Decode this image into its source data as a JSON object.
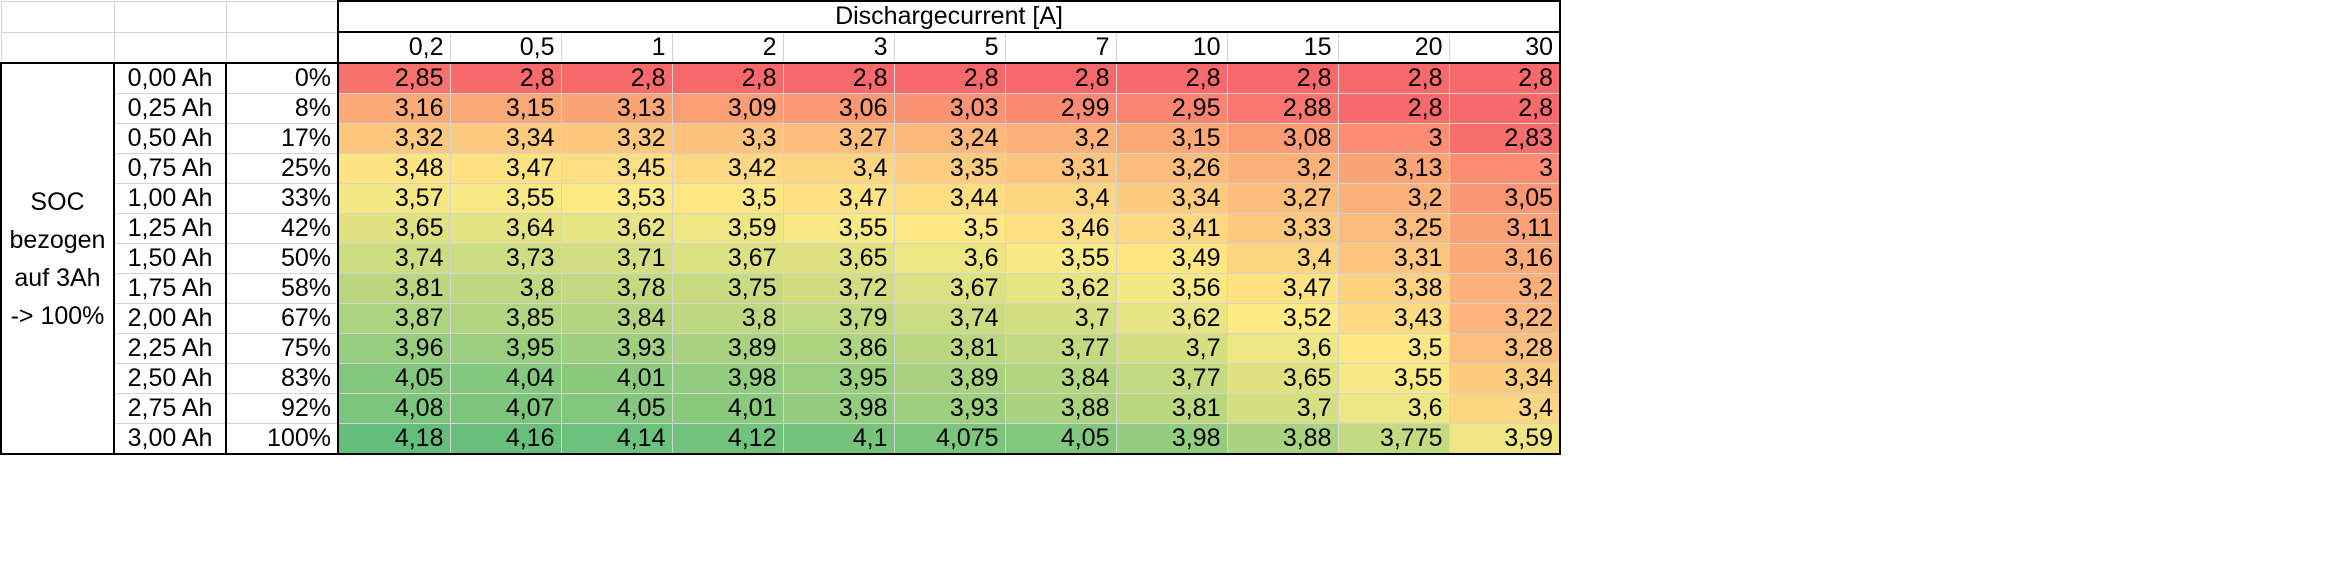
{
  "header": {
    "title": "Dischargecurrent [A]",
    "currents": [
      "0,2",
      "0,5",
      "1",
      "2",
      "3",
      "5",
      "7",
      "10",
      "15",
      "20",
      "30"
    ]
  },
  "soc_label": "SOC bezogen auf 3Ah -> 100%",
  "rows": [
    {
      "ah": "0,00 Ah",
      "pct": "0%",
      "values": [
        "2,85",
        "2,8",
        "2,8",
        "2,8",
        "2,8",
        "2,8",
        "2,8",
        "2,8",
        "2,8",
        "2,8",
        "2,8"
      ]
    },
    {
      "ah": "0,25 Ah",
      "pct": "8%",
      "values": [
        "3,16",
        "3,15",
        "3,13",
        "3,09",
        "3,06",
        "3,03",
        "2,99",
        "2,95",
        "2,88",
        "2,8",
        "2,8"
      ]
    },
    {
      "ah": "0,50 Ah",
      "pct": "17%",
      "values": [
        "3,32",
        "3,34",
        "3,32",
        "3,3",
        "3,27",
        "3,24",
        "3,2",
        "3,15",
        "3,08",
        "3",
        "2,83"
      ]
    },
    {
      "ah": "0,75 Ah",
      "pct": "25%",
      "values": [
        "3,48",
        "3,47",
        "3,45",
        "3,42",
        "3,4",
        "3,35",
        "3,31",
        "3,26",
        "3,2",
        "3,13",
        "3"
      ]
    },
    {
      "ah": "1,00 Ah",
      "pct": "33%",
      "values": [
        "3,57",
        "3,55",
        "3,53",
        "3,5",
        "3,47",
        "3,44",
        "3,4",
        "3,34",
        "3,27",
        "3,2",
        "3,05"
      ]
    },
    {
      "ah": "1,25 Ah",
      "pct": "42%",
      "values": [
        "3,65",
        "3,64",
        "3,62",
        "3,59",
        "3,55",
        "3,5",
        "3,46",
        "3,41",
        "3,33",
        "3,25",
        "3,11"
      ]
    },
    {
      "ah": "1,50 Ah",
      "pct": "50%",
      "values": [
        "3,74",
        "3,73",
        "3,71",
        "3,67",
        "3,65",
        "3,6",
        "3,55",
        "3,49",
        "3,4",
        "3,31",
        "3,16"
      ]
    },
    {
      "ah": "1,75 Ah",
      "pct": "58%",
      "values": [
        "3,81",
        "3,8",
        "3,78",
        "3,75",
        "3,72",
        "3,67",
        "3,62",
        "3,56",
        "3,47",
        "3,38",
        "3,2"
      ]
    },
    {
      "ah": "2,00 Ah",
      "pct": "67%",
      "values": [
        "3,87",
        "3,85",
        "3,84",
        "3,8",
        "3,79",
        "3,74",
        "3,7",
        "3,62",
        "3,52",
        "3,43",
        "3,22"
      ]
    },
    {
      "ah": "2,25 Ah",
      "pct": "75%",
      "values": [
        "3,96",
        "3,95",
        "3,93",
        "3,89",
        "3,86",
        "3,81",
        "3,77",
        "3,7",
        "3,6",
        "3,5",
        "3,28"
      ]
    },
    {
      "ah": "2,50 Ah",
      "pct": "83%",
      "values": [
        "4,05",
        "4,04",
        "4,01",
        "3,98",
        "3,95",
        "3,89",
        "3,84",
        "3,77",
        "3,65",
        "3,55",
        "3,34"
      ]
    },
    {
      "ah": "2,75 Ah",
      "pct": "92%",
      "values": [
        "4,08",
        "4,07",
        "4,05",
        "4,01",
        "3,98",
        "3,93",
        "3,88",
        "3,81",
        "3,7",
        "3,6",
        "3,4"
      ]
    },
    {
      "ah": "3,00 Ah",
      "pct": "100%",
      "values": [
        "4,18",
        "4,16",
        "4,14",
        "4,12",
        "4,1",
        "4,075",
        "4,05",
        "3,98",
        "3,88",
        "3,775",
        "3,59"
      ]
    }
  ],
  "color_scale": {
    "low": "#f8696b",
    "mid": "#ffeb84",
    "high": "#63be7b"
  }
}
